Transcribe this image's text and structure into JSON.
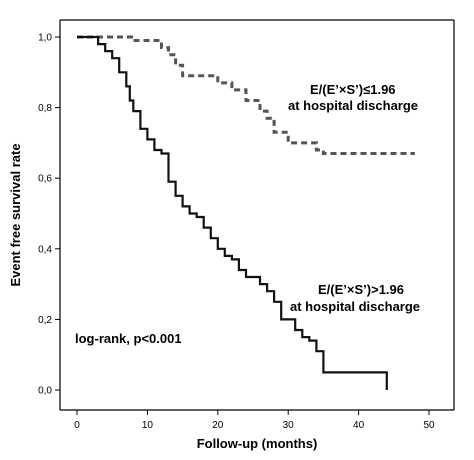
{
  "chart_data": {
    "type": "line",
    "subtype": "kaplan-meier",
    "title": "",
    "xlabel": "Follow-up (months)",
    "ylabel": "Event free survival rate",
    "xlim": [
      0,
      50
    ],
    "ylim": [
      0,
      1
    ],
    "x_ticks": [
      "0",
      "10",
      "20",
      "30",
      "40",
      "50"
    ],
    "y_ticks": [
      "0,0",
      "0,2",
      "0,4",
      "0,6",
      "0,8",
      "1,0"
    ],
    "annotations": {
      "logrank": "log-rank, p<0.001",
      "group_low_line1": "E/(E’×S’)≤1.96",
      "group_low_line2": "at hospital discharge",
      "group_high_line1": "E/(E’×S’)>1.96",
      "group_high_line2": "at hospital discharge"
    },
    "series": [
      {
        "style": "dashed",
        "color": "#555555",
        "points": [
          [
            0,
            1.0
          ],
          [
            8,
            1.0
          ],
          [
            8,
            0.99
          ],
          [
            12,
            0.99
          ],
          [
            12,
            0.97
          ],
          [
            13,
            0.97
          ],
          [
            13,
            0.95
          ],
          [
            14,
            0.95
          ],
          [
            14,
            0.92
          ],
          [
            15,
            0.92
          ],
          [
            15,
            0.89
          ],
          [
            20,
            0.89
          ],
          [
            20,
            0.87
          ],
          [
            22,
            0.87
          ],
          [
            22,
            0.85
          ],
          [
            24,
            0.85
          ],
          [
            24,
            0.82
          ],
          [
            26,
            0.82
          ],
          [
            26,
            0.79
          ],
          [
            27,
            0.79
          ],
          [
            27,
            0.77
          ],
          [
            28,
            0.77
          ],
          [
            28,
            0.73
          ],
          [
            30,
            0.73
          ],
          [
            30,
            0.7
          ],
          [
            34,
            0.7
          ],
          [
            34,
            0.68
          ],
          [
            35,
            0.68
          ],
          [
            35,
            0.67
          ],
          [
            48,
            0.67
          ]
        ]
      },
      {
        "style": "solid",
        "color": "#111111",
        "points": [
          [
            0,
            1.0
          ],
          [
            3,
            1.0
          ],
          [
            3,
            0.98
          ],
          [
            4,
            0.98
          ],
          [
            4,
            0.96
          ],
          [
            5,
            0.96
          ],
          [
            5,
            0.94
          ],
          [
            6,
            0.94
          ],
          [
            6,
            0.9
          ],
          [
            7,
            0.9
          ],
          [
            7,
            0.86
          ],
          [
            7.5,
            0.86
          ],
          [
            7.5,
            0.82
          ],
          [
            8,
            0.82
          ],
          [
            8,
            0.79
          ],
          [
            9,
            0.79
          ],
          [
            9,
            0.74
          ],
          [
            10,
            0.74
          ],
          [
            10,
            0.71
          ],
          [
            11,
            0.71
          ],
          [
            11,
            0.68
          ],
          [
            12,
            0.68
          ],
          [
            12,
            0.67
          ],
          [
            13,
            0.67
          ],
          [
            13,
            0.59
          ],
          [
            14,
            0.59
          ],
          [
            14,
            0.55
          ],
          [
            15,
            0.55
          ],
          [
            15,
            0.52
          ],
          [
            16,
            0.52
          ],
          [
            16,
            0.5
          ],
          [
            17,
            0.5
          ],
          [
            17,
            0.49
          ],
          [
            18,
            0.49
          ],
          [
            18,
            0.46
          ],
          [
            19,
            0.46
          ],
          [
            19,
            0.43
          ],
          [
            20,
            0.43
          ],
          [
            20,
            0.4
          ],
          [
            21,
            0.4
          ],
          [
            21,
            0.38
          ],
          [
            22,
            0.38
          ],
          [
            22,
            0.37
          ],
          [
            23,
            0.37
          ],
          [
            23,
            0.34
          ],
          [
            24,
            0.34
          ],
          [
            24,
            0.32
          ],
          [
            26,
            0.32
          ],
          [
            26,
            0.3
          ],
          [
            27,
            0.3
          ],
          [
            27,
            0.28
          ],
          [
            28,
            0.28
          ],
          [
            28,
            0.25
          ],
          [
            29,
            0.25
          ],
          [
            29,
            0.2
          ],
          [
            31,
            0.2
          ],
          [
            31,
            0.17
          ],
          [
            32,
            0.17
          ],
          [
            32,
            0.15
          ],
          [
            33,
            0.15
          ],
          [
            33,
            0.14
          ],
          [
            34,
            0.14
          ],
          [
            34,
            0.11
          ],
          [
            35,
            0.11
          ],
          [
            35,
            0.05
          ],
          [
            44,
            0.05
          ],
          [
            44,
            0.0
          ]
        ]
      }
    ]
  }
}
